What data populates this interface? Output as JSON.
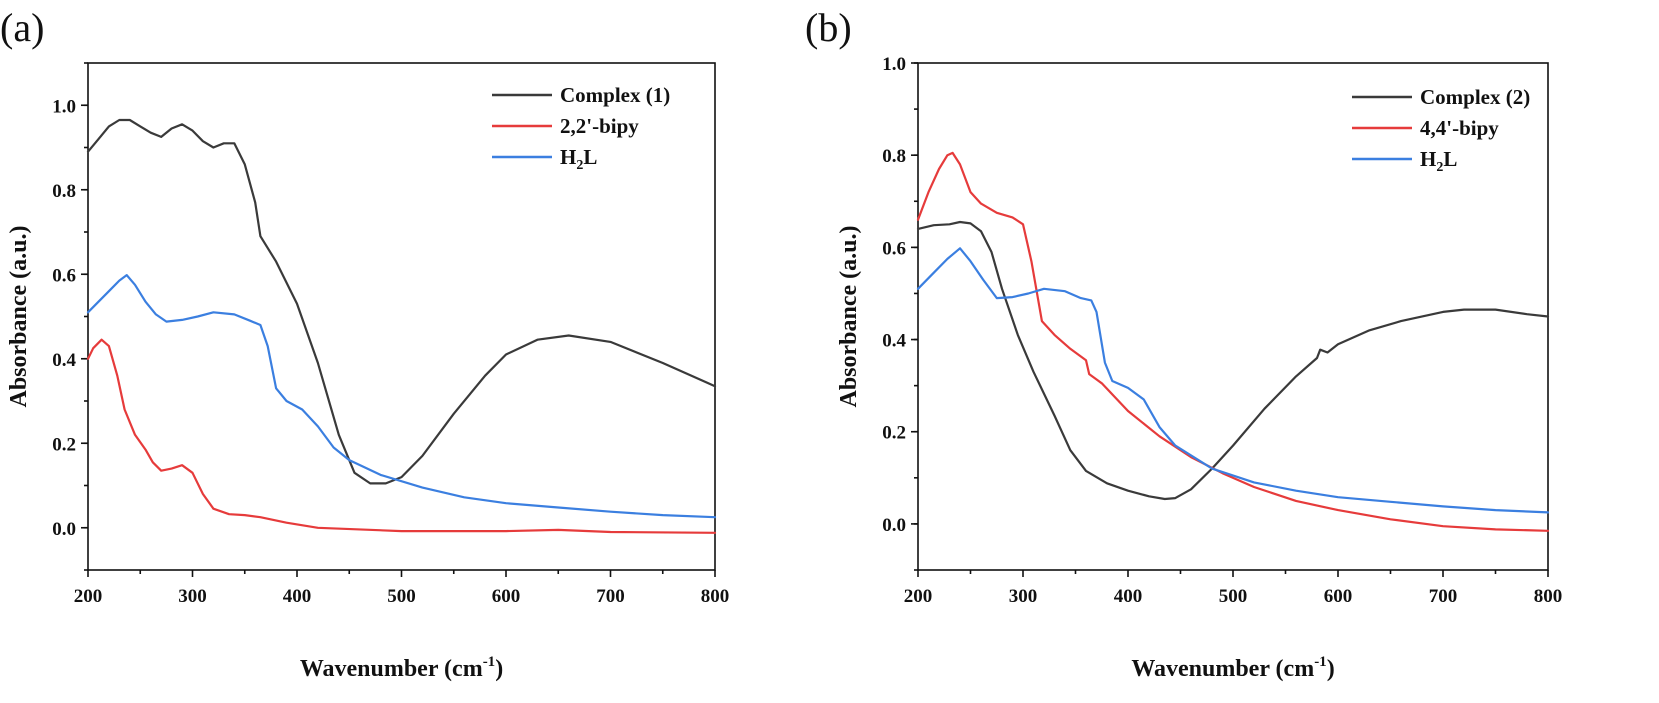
{
  "chart_data": [
    {
      "type": "line",
      "panel_label": "(a)",
      "xlabel_main": "Wavenumber (cm",
      "xlabel_sup": "-1",
      "xlabel_end": ")",
      "ylabel": "Absorbance (a.u.)",
      "xlim": [
        200,
        800
      ],
      "ylim": [
        -0.1,
        1.1
      ],
      "xticks": [
        200,
        300,
        400,
        500,
        600,
        700,
        800
      ],
      "yticks": [
        0.0,
        0.2,
        0.4,
        0.6,
        0.8,
        1.0
      ],
      "ytick_labels": [
        "0.0",
        "0.2",
        "0.4",
        "0.6",
        "0.8",
        "1.0"
      ],
      "legend_position": "top-right",
      "series": [
        {
          "name": "Complex (1)",
          "legend_main": "Complex (1)",
          "legend_sub": "",
          "legend_end": "",
          "color": "#3a3a3a",
          "points": [
            [
              200,
              0.89
            ],
            [
              210,
              0.92
            ],
            [
              220,
              0.95
            ],
            [
              230,
              0.965
            ],
            [
              240,
              0.965
            ],
            [
              250,
              0.95
            ],
            [
              260,
              0.935
            ],
            [
              270,
              0.925
            ],
            [
              280,
              0.945
            ],
            [
              290,
              0.955
            ],
            [
              300,
              0.94
            ],
            [
              310,
              0.915
            ],
            [
              320,
              0.9
            ],
            [
              330,
              0.91
            ],
            [
              340,
              0.91
            ],
            [
              350,
              0.86
            ],
            [
              360,
              0.77
            ],
            [
              365,
              0.69
            ],
            [
              380,
              0.63
            ],
            [
              400,
              0.53
            ],
            [
              420,
              0.39
            ],
            [
              440,
              0.22
            ],
            [
              455,
              0.13
            ],
            [
              470,
              0.105
            ],
            [
              485,
              0.105
            ],
            [
              500,
              0.12
            ],
            [
              520,
              0.17
            ],
            [
              550,
              0.27
            ],
            [
              580,
              0.36
            ],
            [
              600,
              0.41
            ],
            [
              630,
              0.445
            ],
            [
              660,
              0.455
            ],
            [
              700,
              0.44
            ],
            [
              750,
              0.39
            ],
            [
              800,
              0.335
            ]
          ]
        },
        {
          "name": "2,2'-bipy",
          "legend_main": "2,2'-bipy",
          "legend_sub": "",
          "legend_end": "",
          "color": "#e63b3b",
          "points": [
            [
              200,
              0.4
            ],
            [
              205,
              0.425
            ],
            [
              213,
              0.445
            ],
            [
              220,
              0.43
            ],
            [
              228,
              0.36
            ],
            [
              235,
              0.28
            ],
            [
              245,
              0.22
            ],
            [
              255,
              0.185
            ],
            [
              262,
              0.155
            ],
            [
              270,
              0.135
            ],
            [
              280,
              0.14
            ],
            [
              290,
              0.148
            ],
            [
              300,
              0.13
            ],
            [
              310,
              0.08
            ],
            [
              320,
              0.045
            ],
            [
              335,
              0.032
            ],
            [
              350,
              0.03
            ],
            [
              365,
              0.025
            ],
            [
              390,
              0.012
            ],
            [
              420,
              0.0
            ],
            [
              500,
              -0.008
            ],
            [
              600,
              -0.008
            ],
            [
              650,
              -0.005
            ],
            [
              700,
              -0.01
            ],
            [
              800,
              -0.012
            ]
          ]
        },
        {
          "name": "H2L",
          "legend_main": "H",
          "legend_sub": "2",
          "legend_end": "L",
          "color": "#3b7fe0",
          "points": [
            [
              200,
              0.51
            ],
            [
              210,
              0.535
            ],
            [
              220,
              0.56
            ],
            [
              230,
              0.585
            ],
            [
              237,
              0.598
            ],
            [
              245,
              0.575
            ],
            [
              255,
              0.535
            ],
            [
              265,
              0.505
            ],
            [
              275,
              0.488
            ],
            [
              290,
              0.492
            ],
            [
              305,
              0.5
            ],
            [
              320,
              0.51
            ],
            [
              340,
              0.505
            ],
            [
              355,
              0.49
            ],
            [
              365,
              0.48
            ],
            [
              372,
              0.43
            ],
            [
              380,
              0.33
            ],
            [
              390,
              0.3
            ],
            [
              405,
              0.28
            ],
            [
              420,
              0.24
            ],
            [
              435,
              0.19
            ],
            [
              450,
              0.16
            ],
            [
              480,
              0.125
            ],
            [
              520,
              0.095
            ],
            [
              560,
              0.072
            ],
            [
              600,
              0.058
            ],
            [
              650,
              0.048
            ],
            [
              700,
              0.038
            ],
            [
              750,
              0.03
            ],
            [
              800,
              0.025
            ]
          ]
        }
      ]
    },
    {
      "type": "line",
      "panel_label": "(b)",
      "xlabel_main": "Wavenumber (cm",
      "xlabel_sup": "-1",
      "xlabel_end": ")",
      "ylabel": "Absorbance (a.u.)",
      "xlim": [
        200,
        800
      ],
      "ylim": [
        -0.1,
        1.0
      ],
      "xticks": [
        200,
        300,
        400,
        500,
        600,
        700,
        800
      ],
      "yticks": [
        0.0,
        0.2,
        0.4,
        0.6,
        0.8,
        1.0
      ],
      "ytick_labels": [
        "0.0",
        "0.2",
        "0.4",
        "0.6",
        "0.8",
        "1.0"
      ],
      "legend_position": "top-right",
      "series": [
        {
          "name": "Complex (2)",
          "legend_main": "Complex (2)",
          "legend_sub": "",
          "legend_end": "",
          "color": "#3a3a3a",
          "points": [
            [
              200,
              0.64
            ],
            [
              215,
              0.648
            ],
            [
              230,
              0.65
            ],
            [
              240,
              0.655
            ],
            [
              250,
              0.652
            ],
            [
              260,
              0.635
            ],
            [
              270,
              0.59
            ],
            [
              280,
              0.51
            ],
            [
              295,
              0.41
            ],
            [
              310,
              0.33
            ],
            [
              330,
              0.235
            ],
            [
              345,
              0.16
            ],
            [
              360,
              0.115
            ],
            [
              380,
              0.088
            ],
            [
              400,
              0.072
            ],
            [
              420,
              0.06
            ],
            [
              435,
              0.054
            ],
            [
              445,
              0.056
            ],
            [
              460,
              0.075
            ],
            [
              480,
              0.12
            ],
            [
              500,
              0.17
            ],
            [
              530,
              0.25
            ],
            [
              560,
              0.32
            ],
            [
              580,
              0.36
            ],
            [
              583,
              0.378
            ],
            [
              590,
              0.372
            ],
            [
              600,
              0.39
            ],
            [
              630,
              0.42
            ],
            [
              660,
              0.44
            ],
            [
              700,
              0.46
            ],
            [
              720,
              0.465
            ],
            [
              750,
              0.465
            ],
            [
              780,
              0.455
            ],
            [
              800,
              0.45
            ]
          ]
        },
        {
          "name": "4,4'-bipy",
          "legend_main": "4,4'-bipy",
          "legend_sub": "",
          "legend_end": "",
          "color": "#e63b3b",
          "points": [
            [
              200,
              0.66
            ],
            [
              210,
              0.72
            ],
            [
              220,
              0.77
            ],
            [
              228,
              0.8
            ],
            [
              233,
              0.805
            ],
            [
              240,
              0.78
            ],
            [
              250,
              0.72
            ],
            [
              260,
              0.695
            ],
            [
              275,
              0.675
            ],
            [
              290,
              0.665
            ],
            [
              300,
              0.65
            ],
            [
              308,
              0.57
            ],
            [
              318,
              0.44
            ],
            [
              330,
              0.41
            ],
            [
              345,
              0.38
            ],
            [
              360,
              0.355
            ],
            [
              363,
              0.325
            ],
            [
              375,
              0.305
            ],
            [
              400,
              0.245
            ],
            [
              430,
              0.19
            ],
            [
              460,
              0.145
            ],
            [
              490,
              0.11
            ],
            [
              520,
              0.08
            ],
            [
              560,
              0.05
            ],
            [
              600,
              0.03
            ],
            [
              650,
              0.01
            ],
            [
              700,
              -0.005
            ],
            [
              750,
              -0.012
            ],
            [
              800,
              -0.015
            ]
          ]
        },
        {
          "name": "H2L",
          "legend_main": "H",
          "legend_sub": "2",
          "legend_end": "L",
          "color": "#3b7fe0",
          "points": [
            [
              200,
              0.51
            ],
            [
              215,
              0.545
            ],
            [
              228,
              0.575
            ],
            [
              240,
              0.598
            ],
            [
              250,
              0.57
            ],
            [
              262,
              0.53
            ],
            [
              275,
              0.49
            ],
            [
              290,
              0.492
            ],
            [
              305,
              0.5
            ],
            [
              320,
              0.51
            ],
            [
              340,
              0.505
            ],
            [
              355,
              0.49
            ],
            [
              365,
              0.485
            ],
            [
              370,
              0.46
            ],
            [
              378,
              0.35
            ],
            [
              385,
              0.31
            ],
            [
              400,
              0.295
            ],
            [
              415,
              0.27
            ],
            [
              430,
              0.21
            ],
            [
              445,
              0.17
            ],
            [
              480,
              0.12
            ],
            [
              520,
              0.09
            ],
            [
              560,
              0.072
            ],
            [
              600,
              0.058
            ],
            [
              650,
              0.048
            ],
            [
              700,
              0.038
            ],
            [
              750,
              0.03
            ],
            [
              800,
              0.025
            ]
          ]
        }
      ]
    }
  ]
}
